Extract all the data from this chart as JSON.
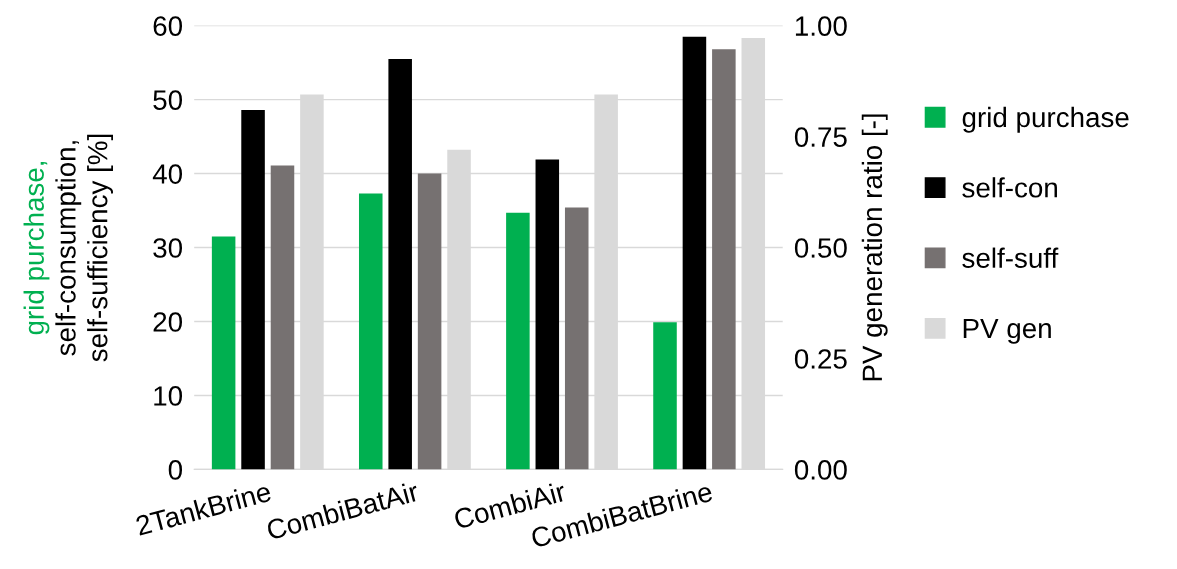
{
  "chart_data": {
    "type": "bar",
    "categories": [
      "2TankBrine",
      "CombiBatAir",
      "CombiAir",
      "CombiBatBrine"
    ],
    "ylabel": "grid purchase,\nself-consumption,\nself-sufficiency [%]",
    "y2label": "PV generation ratio [-]",
    "series": [
      {
        "name": "grid purchase",
        "color": "#00b050",
        "values": [
          31.5,
          37.3,
          34.7,
          19.9
        ]
      },
      {
        "name": "self-con",
        "color": "#000000",
        "values": [
          48.6,
          55.5,
          41.9,
          58.5
        ]
      },
      {
        "name": "self-suff",
        "color": "#767171",
        "values": [
          41.1,
          40.0,
          35.4,
          56.8
        ]
      },
      {
        "name": "PV gen",
        "color": "#d9d9d9",
        "axis": "y2",
        "values": [
          0.845,
          0.72,
          0.845,
          0.972
        ]
      }
    ],
    "ylim": [
      0,
      60
    ],
    "yticks": [
      0,
      10,
      20,
      30,
      40,
      50,
      60
    ],
    "y2lim": [
      0,
      1
    ],
    "y2ticks": [
      {
        "value": 0,
        "label": "0.00"
      },
      {
        "value": 0.25,
        "label": "0.25"
      },
      {
        "value": 0.5,
        "label": "0.50"
      },
      {
        "value": 0.75,
        "label": "0.75"
      },
      {
        "value": 1,
        "label": "1.00"
      }
    ],
    "grid": "y",
    "legend": "right"
  }
}
